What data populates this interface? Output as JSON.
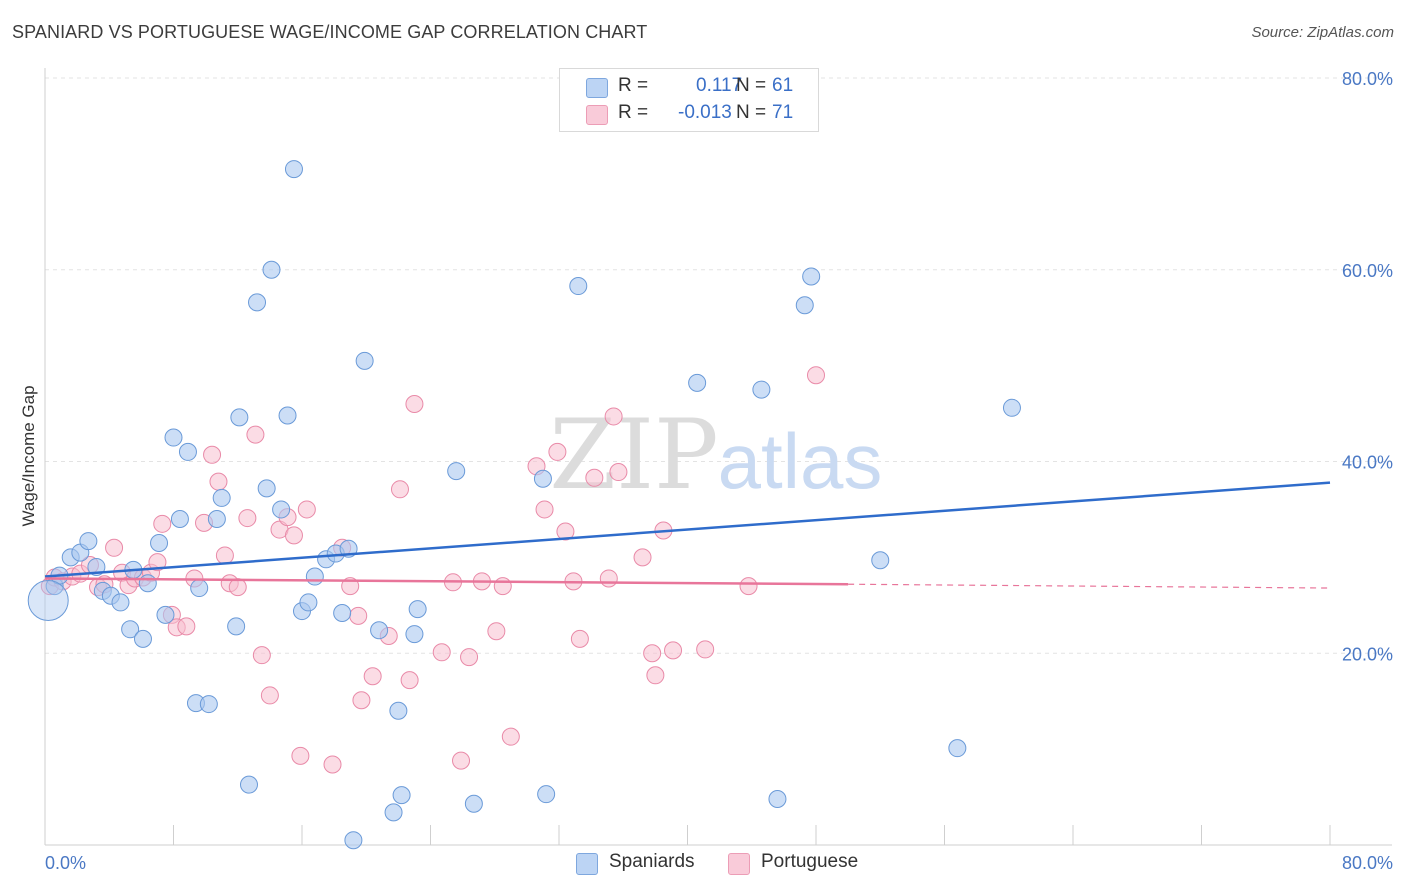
{
  "header": {
    "title": "SPANIARD VS PORTUGUESE WAGE/INCOME GAP CORRELATION CHART",
    "source": "Source: ZipAtlas.com"
  },
  "legend": {
    "rows": [
      {
        "r_label": "R =",
        "r_value": "0.117",
        "n_label": "N =",
        "n_value": "61"
      },
      {
        "r_label": "R =",
        "r_value": "-0.013",
        "n_label": "N =",
        "n_value": "71"
      }
    ]
  },
  "watermark": {
    "part1": "ZIP",
    "part2": "atlas"
  },
  "colors": {
    "spaniards_fill": "#aac8f0",
    "spaniards_stroke": "#6a9ad8",
    "spaniards_line": "#2f6ccb",
    "portuguese_fill": "#f7bfd0",
    "portuguese_stroke": "#e98aa8",
    "portuguese_line": "#e8759a",
    "tick_text": "#4a78c4",
    "grid": "#e3e3e3"
  },
  "chart_data": {
    "type": "scatter",
    "title": "SPANIARD VS PORTUGUESE WAGE/INCOME GAP CORRELATION CHART",
    "xlabel": "",
    "ylabel": "Wage/Income Gap",
    "xlim": [
      0,
      80
    ],
    "ylim": [
      0,
      80
    ],
    "x_tick_labels": [
      "0.0%",
      "80.0%"
    ],
    "y_ticks": [
      20,
      40,
      60,
      80
    ],
    "y_tick_labels": [
      "20.0%",
      "40.0%",
      "60.0%",
      "80.0%"
    ],
    "grid": true,
    "legend_position": "bottom-center",
    "series": [
      {
        "name": "Spaniards",
        "r": 0.117,
        "n": 61,
        "trend": {
          "x": [
            0,
            80
          ],
          "y": [
            28.0,
            37.8
          ]
        },
        "points": [
          [
            0.6,
            27.0
          ],
          [
            0.9,
            28.1
          ],
          [
            1.6,
            30.0
          ],
          [
            2.2,
            30.5
          ],
          [
            2.7,
            31.7
          ],
          [
            3.2,
            29.0
          ],
          [
            3.6,
            26.5
          ],
          [
            4.1,
            26.0
          ],
          [
            4.7,
            25.3
          ],
          [
            5.3,
            22.5
          ],
          [
            5.5,
            28.7
          ],
          [
            6.1,
            21.5
          ],
          [
            6.4,
            27.3
          ],
          [
            7.1,
            31.5
          ],
          [
            7.5,
            24.0
          ],
          [
            8.0,
            42.5
          ],
          [
            8.4,
            34.0
          ],
          [
            8.9,
            41.0
          ],
          [
            9.4,
            14.8
          ],
          [
            9.6,
            26.8
          ],
          [
            10.2,
            14.7
          ],
          [
            10.7,
            34.0
          ],
          [
            11.0,
            36.2
          ],
          [
            11.9,
            22.8
          ],
          [
            12.1,
            44.6
          ],
          [
            12.7,
            6.3
          ],
          [
            13.2,
            56.6
          ],
          [
            13.8,
            37.2
          ],
          [
            14.1,
            60.0
          ],
          [
            14.7,
            35.0
          ],
          [
            15.1,
            44.8
          ],
          [
            15.5,
            70.5
          ],
          [
            16.0,
            24.4
          ],
          [
            16.4,
            25.3
          ],
          [
            16.8,
            28.0
          ],
          [
            17.5,
            29.8
          ],
          [
            18.1,
            30.4
          ],
          [
            18.5,
            24.2
          ],
          [
            18.9,
            30.9
          ],
          [
            19.2,
            0.5
          ],
          [
            19.9,
            50.5
          ],
          [
            20.8,
            22.4
          ],
          [
            21.7,
            3.4
          ],
          [
            22.0,
            14.0
          ],
          [
            22.2,
            5.2
          ],
          [
            23.0,
            22.0
          ],
          [
            23.2,
            24.6
          ],
          [
            25.6,
            39.0
          ],
          [
            26.7,
            4.3
          ],
          [
            31.0,
            38.2
          ],
          [
            31.2,
            5.3
          ],
          [
            33.2,
            58.3
          ],
          [
            40.6,
            48.2
          ],
          [
            44.6,
            47.5
          ],
          [
            45.6,
            4.8
          ],
          [
            47.3,
            56.3
          ],
          [
            47.7,
            59.3
          ],
          [
            52.0,
            29.7
          ],
          [
            56.8,
            10.1
          ],
          [
            60.2,
            45.6
          ],
          [
            0.2,
            25.5
          ]
        ]
      },
      {
        "name": "Portuguese",
        "r": -0.013,
        "n": 71,
        "trend": {
          "x": [
            0,
            50
          ],
          "y": [
            27.8,
            27.2
          ]
        },
        "trend_extended": {
          "x": [
            50,
            80
          ],
          "y": [
            27.2,
            26.8
          ]
        },
        "points": [
          [
            0.3,
            27.0
          ],
          [
            0.6,
            27.9
          ],
          [
            1.1,
            27.5
          ],
          [
            1.7,
            28.0
          ],
          [
            2.2,
            28.3
          ],
          [
            2.8,
            29.2
          ],
          [
            3.3,
            26.9
          ],
          [
            3.7,
            27.2
          ],
          [
            4.3,
            31.0
          ],
          [
            4.8,
            28.4
          ],
          [
            5.2,
            27.1
          ],
          [
            5.6,
            27.8
          ],
          [
            6.1,
            27.9
          ],
          [
            6.6,
            28.4
          ],
          [
            7.0,
            29.5
          ],
          [
            7.3,
            33.5
          ],
          [
            7.9,
            24.0
          ],
          [
            8.2,
            22.7
          ],
          [
            8.8,
            22.8
          ],
          [
            9.3,
            27.8
          ],
          [
            9.9,
            33.6
          ],
          [
            10.4,
            40.7
          ],
          [
            10.8,
            37.9
          ],
          [
            11.2,
            30.2
          ],
          [
            11.5,
            27.3
          ],
          [
            12.0,
            26.9
          ],
          [
            12.6,
            34.1
          ],
          [
            13.1,
            42.8
          ],
          [
            13.5,
            19.8
          ],
          [
            14.0,
            15.6
          ],
          [
            14.6,
            32.9
          ],
          [
            15.1,
            34.2
          ],
          [
            15.5,
            32.3
          ],
          [
            15.9,
            9.3
          ],
          [
            16.3,
            35.0
          ],
          [
            17.9,
            8.4
          ],
          [
            18.5,
            31.0
          ],
          [
            19.0,
            27.0
          ],
          [
            19.5,
            23.9
          ],
          [
            19.7,
            15.1
          ],
          [
            20.4,
            17.6
          ],
          [
            21.4,
            21.8
          ],
          [
            22.1,
            37.1
          ],
          [
            22.7,
            17.2
          ],
          [
            23.0,
            46.0
          ],
          [
            24.7,
            20.1
          ],
          [
            25.4,
            27.4
          ],
          [
            25.9,
            8.8
          ],
          [
            26.4,
            19.6
          ],
          [
            27.2,
            27.5
          ],
          [
            28.1,
            22.3
          ],
          [
            28.5,
            27.0
          ],
          [
            29.0,
            11.3
          ],
          [
            30.6,
            39.5
          ],
          [
            31.1,
            35.0
          ],
          [
            31.9,
            41.0
          ],
          [
            32.4,
            32.7
          ],
          [
            32.9,
            27.5
          ],
          [
            33.3,
            21.5
          ],
          [
            34.2,
            38.3
          ],
          [
            35.1,
            27.8
          ],
          [
            35.4,
            44.7
          ],
          [
            35.7,
            38.9
          ],
          [
            37.2,
            30.0
          ],
          [
            37.8,
            20.0
          ],
          [
            38.0,
            17.7
          ],
          [
            38.5,
            32.8
          ],
          [
            39.1,
            20.3
          ],
          [
            41.1,
            20.4
          ],
          [
            43.8,
            27.0
          ],
          [
            48.0,
            49.0
          ]
        ]
      }
    ]
  },
  "bottom_legend": [
    {
      "label": "Spaniards"
    },
    {
      "label": "Portuguese"
    }
  ]
}
